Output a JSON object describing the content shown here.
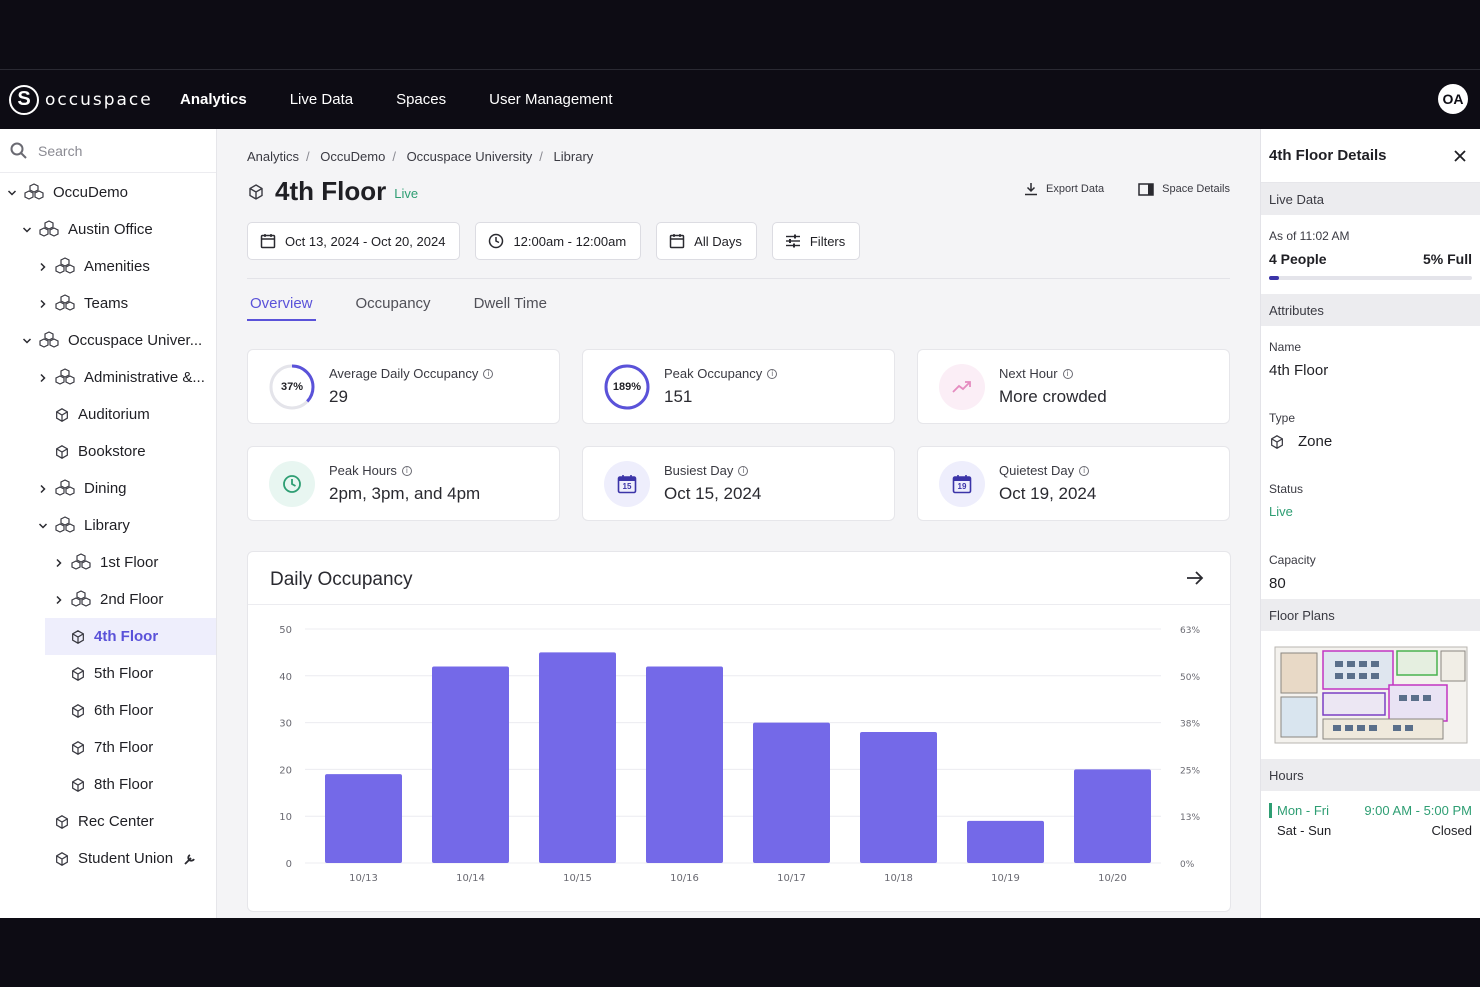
{
  "nav": {
    "brand": "occuspace",
    "items": [
      "Analytics",
      "Live Data",
      "Spaces",
      "User Management"
    ],
    "avatar": "OA"
  },
  "sidebar": {
    "search_placeholder": "Search",
    "items": [
      {
        "label": "OccuDemo",
        "level": 0,
        "chevron": "down",
        "icon": "building-icon"
      },
      {
        "label": "Austin Office",
        "level": 1,
        "chevron": "down",
        "icon": "building-icon"
      },
      {
        "label": "Amenities",
        "level": 2,
        "chevron": "right",
        "icon": "building-icon"
      },
      {
        "label": "Teams",
        "level": 2,
        "chevron": "right",
        "icon": "building-icon"
      },
      {
        "label": "Occuspace Univer...",
        "level": 1,
        "chevron": "down",
        "icon": "building-icon"
      },
      {
        "label": "Administrative &...",
        "level": 2,
        "chevron": "right",
        "icon": "building-icon"
      },
      {
        "label": "Auditorium",
        "level": 2,
        "chevron": "",
        "icon": "cube-icon"
      },
      {
        "label": "Bookstore",
        "level": 2,
        "chevron": "",
        "icon": "cube-icon"
      },
      {
        "label": "Dining",
        "level": 2,
        "chevron": "right",
        "icon": "building-icon"
      },
      {
        "label": "Library",
        "level": 2,
        "chevron": "down",
        "icon": "building-icon"
      },
      {
        "label": "1st Floor",
        "level": 3,
        "chevron": "right",
        "icon": "building-icon"
      },
      {
        "label": "2nd Floor",
        "level": 3,
        "chevron": "right",
        "icon": "building-icon"
      },
      {
        "label": "4th Floor",
        "level": 3,
        "chevron": "",
        "icon": "cube-icon",
        "selected": true
      },
      {
        "label": "5th Floor",
        "level": 3,
        "chevron": "",
        "icon": "cube-icon"
      },
      {
        "label": "6th Floor",
        "level": 3,
        "chevron": "",
        "icon": "cube-icon"
      },
      {
        "label": "7th Floor",
        "level": 3,
        "chevron": "",
        "icon": "cube-icon"
      },
      {
        "label": "8th Floor",
        "level": 3,
        "chevron": "",
        "icon": "cube-icon"
      },
      {
        "label": "Rec Center",
        "level": 2,
        "chevron": "",
        "icon": "cube-icon"
      },
      {
        "label": "Student Union",
        "level": 2,
        "chevron": "",
        "icon": "cube-icon",
        "trailing": "wrench-icon"
      }
    ]
  },
  "main": {
    "breadcrumb": [
      "Analytics",
      "OccuDemo",
      "Occuspace University",
      "Library"
    ],
    "title": "4th Floor",
    "status": "Live",
    "actions": {
      "export": "Export Data",
      "details": "Space Details"
    },
    "filters": {
      "date_range": "Oct 13, 2024 - Oct 20, 2024",
      "time_range": "12:00am - 12:00am",
      "days": "All Days",
      "filters": "Filters"
    },
    "tabs": [
      "Overview",
      "Occupancy",
      "Dwell Time"
    ],
    "cards": {
      "avg": {
        "label": "Average Daily Occupancy",
        "value": "29",
        "badge": "37%",
        "ring_fraction": 0.37
      },
      "peak": {
        "label": "Peak Occupancy",
        "value": "151",
        "badge": "189%",
        "ring_fraction": 1.0
      },
      "next": {
        "label": "Next Hour",
        "value": "More crowded"
      },
      "hours": {
        "label": "Peak Hours",
        "value": "2pm, 3pm, and 4pm"
      },
      "busiest": {
        "label": "Busiest Day",
        "value": "Oct 15, 2024",
        "badge": "15"
      },
      "quietest": {
        "label": "Quietest Day",
        "value": "Oct 19, 2024",
        "badge": "19"
      }
    },
    "chart_title": "Daily Occupancy"
  },
  "chart_data": {
    "type": "bar",
    "title": "Daily Occupancy",
    "categories": [
      "10/13",
      "10/14",
      "10/15",
      "10/16",
      "10/17",
      "10/18",
      "10/19",
      "10/20"
    ],
    "values": [
      19,
      42,
      45,
      42,
      30,
      28,
      9,
      20
    ],
    "ylim": [
      0,
      50
    ],
    "yticks": [
      "0",
      "10",
      "20",
      "30",
      "40",
      "50"
    ],
    "y2ticks": [
      "0%",
      "13%",
      "25%",
      "38%",
      "50%",
      "63%"
    ],
    "color": "#7469e8",
    "grid": true
  },
  "details": {
    "title": "4th Floor Details",
    "live_data_label": "Live Data",
    "as_of": "As of 11:02 AM",
    "people": "4 People",
    "full": "5% Full",
    "full_fraction": 0.05,
    "attributes_label": "Attributes",
    "name_label": "Name",
    "name": "4th Floor",
    "type_label": "Type",
    "type": "Zone",
    "status_label": "Status",
    "status": "Live",
    "capacity_label": "Capacity",
    "capacity": "80",
    "floor_plans_label": "Floor Plans",
    "hours_label": "Hours",
    "hours": [
      {
        "days": "Mon - Fri",
        "time": "9:00 AM - 5:00 PM"
      },
      {
        "days": "Sat - Sun",
        "time": "Closed"
      }
    ]
  },
  "colors": {
    "accent": "#5a52d9",
    "live": "#2e9e73",
    "bar": "#7469e8",
    "nav": "#0d0c14"
  }
}
